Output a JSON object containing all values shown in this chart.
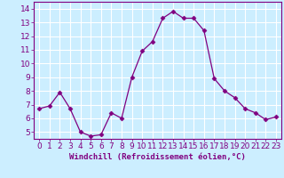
{
  "x": [
    0,
    1,
    2,
    3,
    4,
    5,
    6,
    7,
    8,
    9,
    10,
    11,
    12,
    13,
    14,
    15,
    16,
    17,
    18,
    19,
    20,
    21,
    22,
    23
  ],
  "y": [
    6.7,
    6.9,
    7.9,
    6.7,
    5.0,
    4.7,
    4.8,
    6.4,
    6.0,
    9.0,
    10.9,
    11.6,
    13.3,
    13.8,
    13.3,
    13.3,
    12.4,
    8.9,
    8.0,
    7.5,
    6.7,
    6.4,
    5.9,
    6.1
  ],
  "line_color": "#800080",
  "marker": "D",
  "marker_size": 2.5,
  "bg_color": "#cceeff",
  "grid_color": "#ffffff",
  "xlabel": "Windchill (Refroidissement éolien,°C)",
  "xlabel_color": "#800080",
  "tick_color": "#800080",
  "ylabel_ticks": [
    5,
    6,
    7,
    8,
    9,
    10,
    11,
    12,
    13,
    14
  ],
  "xlim": [
    -0.5,
    23.5
  ],
  "ylim": [
    4.5,
    14.5
  ],
  "xtick_labels": [
    "0",
    "1",
    "2",
    "3",
    "4",
    "5",
    "6",
    "7",
    "8",
    "9",
    "10",
    "11",
    "12",
    "13",
    "14",
    "15",
    "16",
    "17",
    "18",
    "19",
    "20",
    "21",
    "22",
    "23"
  ],
  "axis_label_fontsize": 6.5,
  "tick_fontsize": 6.5
}
